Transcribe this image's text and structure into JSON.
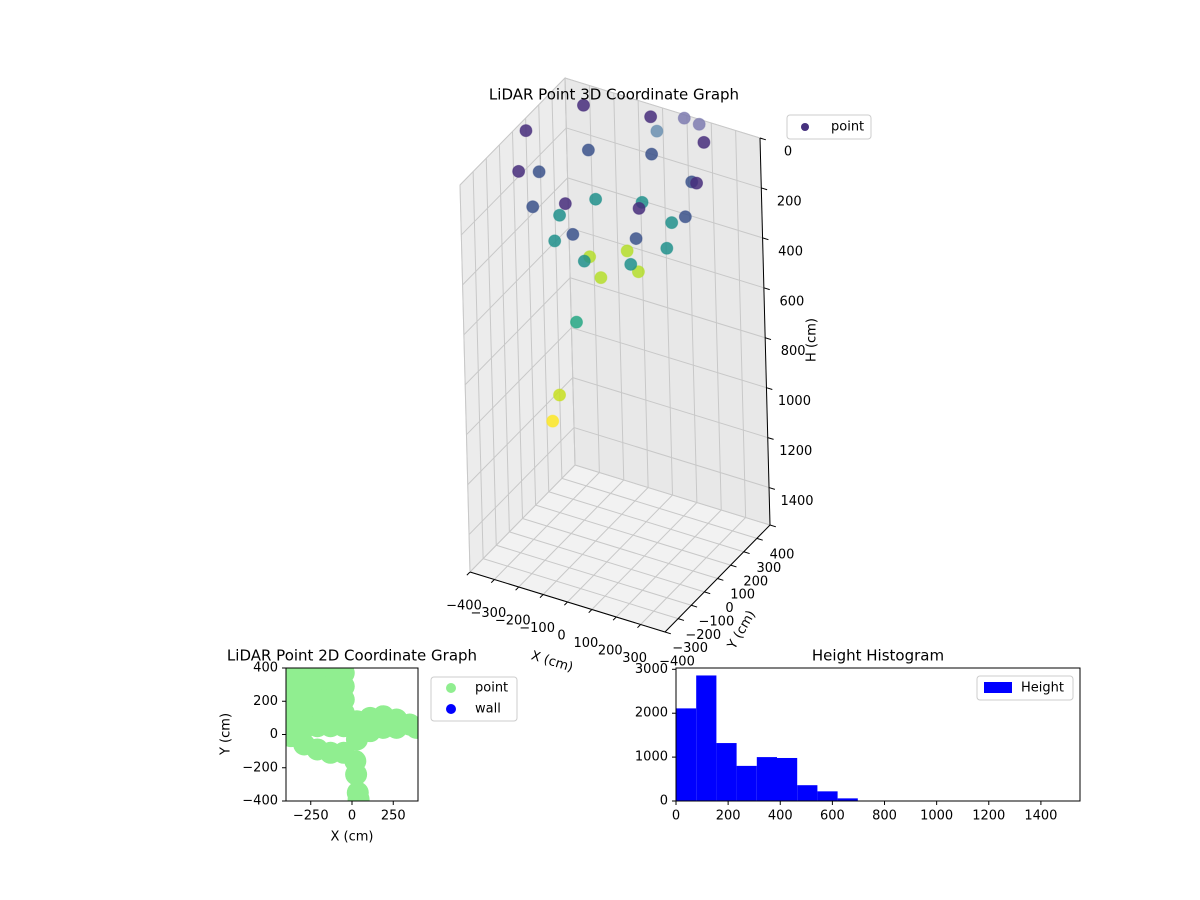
{
  "chart_data": [
    {
      "type": "scatter3d",
      "title": "LiDAR Point 3D Coordinate Graph",
      "xlabel": "X (cm)",
      "ylabel": "Y (cm)",
      "zlabel": "H (cm)",
      "xlim": [
        -400,
        400
      ],
      "ylim": [
        -400,
        400
      ],
      "zlim": [
        0,
        1550
      ],
      "zinvert": true,
      "xticks": [
        {
          "value": -400,
          "label": "−400"
        },
        {
          "value": -300,
          "label": "−300"
        },
        {
          "value": -200,
          "label": "−200"
        },
        {
          "value": -100,
          "label": "−100"
        },
        0,
        100,
        200,
        300
      ],
      "yticks": [
        {
          "value": -400,
          "label": "−400"
        },
        {
          "value": -300,
          "label": "−300"
        },
        {
          "value": -200,
          "label": "−200"
        },
        {
          "value": -100,
          "label": "−100"
        },
        0,
        100,
        200,
        300,
        400
      ],
      "zticks": [
        0,
        200,
        400,
        600,
        800,
        1000,
        1200,
        1400
      ],
      "series": [
        {
          "name": "point",
          "color": "#46317e",
          "x": [
            300,
            197,
            -50,
            -297,
            -400,
            -297,
            -50,
            197,
            250,
            162,
            -50,
            -262,
            -350,
            -262,
            -50,
            162,
            170,
            106,
            -50,
            -206,
            -270,
            -206,
            -50,
            106,
            50,
            -50,
            -150,
            -50,
            -100,
            -150,
            -170,
            100,
            150,
            30
          ],
          "y": [
            100,
            347,
            400,
            347,
            100,
            -147,
            -250,
            -147,
            100,
            312,
            400,
            312,
            100,
            -112,
            -200,
            -112,
            100,
            256,
            320,
            256,
            100,
            -56,
            -120,
            -56,
            100,
            200,
            100,
            0,
            -100,
            -150,
            -170,
            380,
            400,
            300
          ],
          "z": [
            50,
            50,
            50,
            50,
            50,
            50,
            50,
            50,
            200,
            200,
            200,
            200,
            200,
            200,
            200,
            200,
            350,
            350,
            350,
            350,
            350,
            350,
            350,
            350,
            480,
            480,
            480,
            480,
            620,
            900,
            1000,
            0,
            20,
            30
          ],
          "colors": [
            "#472d7b",
            "#472d7b",
            "#472d7b",
            "#472d7b",
            "#472d7b",
            "#472d7b",
            "#472d7b",
            "#472d7b",
            "#3b528b",
            "#3b528b",
            "#3b528b",
            "#3b528b",
            "#3b528b",
            "#3b528b",
            "#3b528b",
            "#3b528b",
            "#21918c",
            "#21918c",
            "#21918c",
            "#21918c",
            "#21918c",
            "#21918c",
            "#21918c",
            "#21918c",
            "#b5de2b",
            "#b5de2b",
            "#b5de2b",
            "#b5de2b",
            "#26a784",
            "#c8e020",
            "#fde725",
            "#7e7bb0",
            "#7e7bb0",
            "#6a8fb0"
          ]
        }
      ]
    },
    {
      "type": "scatter",
      "title": "LiDAR Point 2D Coordinate Graph",
      "xlabel": "X (cm)",
      "ylabel": "Y (cm)",
      "xlim": [
        -400,
        400
      ],
      "ylim": [
        -400,
        400
      ],
      "xticks": [
        {
          "value": -250,
          "label": "−250"
        },
        0,
        250
      ],
      "yticks": [
        {
          "value": -400,
          "label": "−400"
        },
        {
          "value": -200,
          "label": "−200"
        },
        0,
        200,
        400
      ],
      "series": [
        {
          "name": "point",
          "color": "#90ee90",
          "x": [
            -370,
            -290,
            -210,
            -130,
            -50,
            -370,
            -290,
            -210,
            -130,
            -50,
            -370,
            -290,
            -210,
            -130,
            -50,
            -370,
            -290,
            -210,
            -130,
            -50,
            -370,
            -370,
            -290,
            -290,
            -210,
            -210,
            -130,
            -130,
            -50,
            -50,
            30,
            30,
            110,
            110,
            190,
            190,
            270,
            270,
            350,
            390,
            20,
            25,
            35,
            40
          ],
          "y": [
            370,
            370,
            370,
            370,
            370,
            290,
            290,
            290,
            290,
            290,
            210,
            210,
            210,
            210,
            210,
            130,
            130,
            130,
            130,
            130,
            40,
            -10,
            40,
            -60,
            50,
            -90,
            50,
            -110,
            50,
            -110,
            80,
            -30,
            100,
            20,
            110,
            40,
            90,
            40,
            60,
            40,
            -160,
            -240,
            -350,
            -390
          ]
        },
        {
          "name": "wall",
          "color": "#0000ff",
          "x": [],
          "y": []
        }
      ]
    },
    {
      "type": "histogram",
      "title": "Height Histogram",
      "bins": [
        0,
        77.5,
        155,
        232.5,
        310,
        387.5,
        465,
        542.5,
        620,
        697.5,
        775,
        852.5,
        930,
        1007.5,
        1085,
        1162.5,
        1240,
        1317.5,
        1395,
        1472.5,
        1550
      ],
      "xlim": [
        0,
        1550
      ],
      "ylim": [
        0,
        3030
      ],
      "xticks": [
        0,
        200,
        400,
        600,
        800,
        1000,
        1200,
        1400
      ],
      "yticks": [
        0,
        1000,
        2000,
        3000
      ],
      "series": [
        {
          "name": "Height",
          "color": "#0000ff",
          "values": [
            2110,
            2860,
            1320,
            800,
            1000,
            980,
            360,
            220,
            60,
            0,
            0,
            0,
            0,
            0,
            0,
            0,
            0,
            0,
            0,
            0
          ]
        }
      ]
    }
  ]
}
